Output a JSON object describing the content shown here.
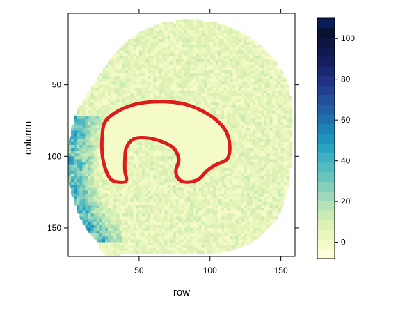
{
  "chart_data": {
    "type": "heatmap",
    "xlabel": "row",
    "ylabel": "column",
    "xlim": [
      0,
      160
    ],
    "ylim": [
      170,
      0
    ],
    "x_ticks": [
      50,
      100,
      150
    ],
    "y_ticks": [
      50,
      100,
      150
    ],
    "x_tick_labels": [
      "50",
      "100",
      "150"
    ],
    "y_tick_labels": [
      "50",
      "100",
      "150"
    ],
    "colorbar": {
      "range": [
        -8,
        110
      ],
      "ticks": [
        0,
        20,
        40,
        60,
        80,
        100
      ],
      "tick_labels": [
        "0",
        "20",
        "40",
        "60",
        "80",
        "100"
      ],
      "levels": [
        -8,
        -4,
        0,
        4,
        8,
        12,
        16,
        20,
        24,
        28,
        32,
        36,
        40,
        44,
        48,
        52,
        56,
        60,
        64,
        68,
        72,
        76,
        80,
        84,
        88,
        92,
        96,
        100,
        104,
        110
      ],
      "colors": [
        "#ffffd9",
        "#f4fbc8",
        "#e9f6bd",
        "#dcf1b3",
        "#cbebb4",
        "#b5e2b6",
        "#9dd8b9",
        "#84cebc",
        "#6ac4bd",
        "#52bbc0",
        "#3db1c3",
        "#2ba3c2",
        "#1f93bc",
        "#1d82b4",
        "#2070ac",
        "#225fa3",
        "#23509a",
        "#233f91",
        "#1f3283",
        "#1a2771",
        "#151f5e",
        "#101a4c",
        "#0d1640",
        "#0a1233",
        "#081d58"
      ]
    },
    "regions": {
      "sample_boundary": [
        [
          26,
          170
        ],
        [
          20,
          160
        ],
        [
          12,
          150
        ],
        [
          6,
          138
        ],
        [
          1,
          122
        ],
        [
          0,
          104
        ],
        [
          1,
          86
        ],
        [
          5,
          70
        ],
        [
          12,
          58
        ],
        [
          20,
          46
        ],
        [
          28,
          34
        ],
        [
          38,
          22
        ],
        [
          52,
          12
        ],
        [
          68,
          6
        ],
        [
          86,
          4
        ],
        [
          104,
          6
        ],
        [
          120,
          12
        ],
        [
          134,
          20
        ],
        [
          146,
          32
        ],
        [
          154,
          46
        ],
        [
          158,
          62
        ],
        [
          159,
          80
        ],
        [
          158,
          100
        ],
        [
          156,
          118
        ],
        [
          152,
          134
        ],
        [
          146,
          146
        ],
        [
          136,
          156
        ],
        [
          122,
          164
        ],
        [
          104,
          168
        ],
        [
          84,
          169
        ],
        [
          66,
          169
        ],
        [
          48,
          168
        ]
      ],
      "high_intensity_band": {
        "description_values_range": [
          30,
          60
        ],
        "location": "left edge, column 70-160, row 0-40"
      },
      "outlined_region": [
        [
          24,
          86
        ],
        [
          26,
          76
        ],
        [
          34,
          69
        ],
        [
          46,
          64
        ],
        [
          58,
          62
        ],
        [
          72,
          62
        ],
        [
          84,
          64
        ],
        [
          96,
          69
        ],
        [
          106,
          76
        ],
        [
          112,
          84
        ],
        [
          114,
          94
        ],
        [
          112,
          102
        ],
        [
          104,
          106
        ],
        [
          98,
          110
        ],
        [
          92,
          116
        ],
        [
          84,
          118
        ],
        [
          78,
          116
        ],
        [
          76,
          110
        ],
        [
          78,
          102
        ],
        [
          74,
          94
        ],
        [
          64,
          89
        ],
        [
          54,
          87
        ],
        [
          46,
          88
        ],
        [
          41,
          94
        ],
        [
          40,
          102
        ],
        [
          40,
          110
        ],
        [
          41,
          117
        ],
        [
          36,
          118
        ],
        [
          30,
          116
        ],
        [
          26,
          108
        ],
        [
          24,
          98
        ]
      ]
    },
    "background_value": 5
  }
}
